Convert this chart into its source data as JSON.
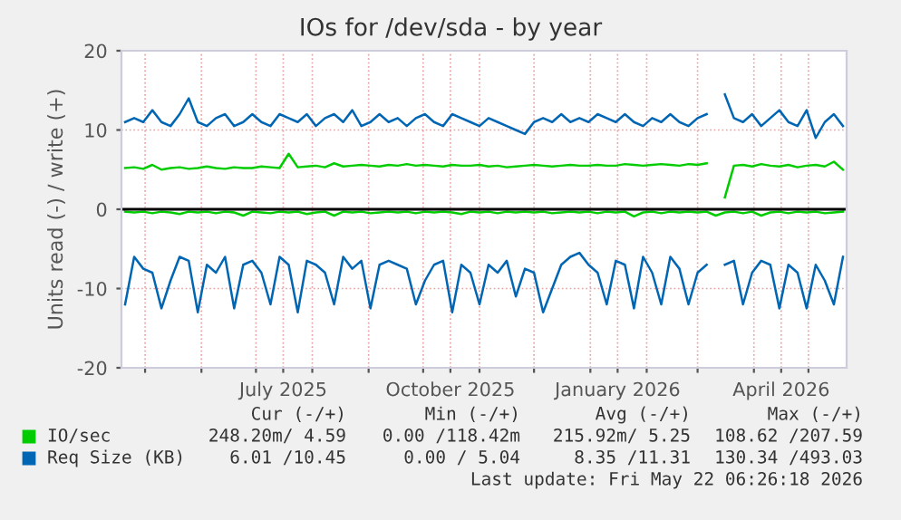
{
  "chart_data": {
    "type": "line",
    "title": "IOs for /dev/sda - by year",
    "ylabel": "Units read (-) / write (+)",
    "x": [
      "2025-04-20",
      "2025-04-25",
      "2025-04-30",
      "2025-05-05",
      "2025-05-10",
      "2025-05-15",
      "2025-05-20",
      "2025-05-25",
      "2025-05-30",
      "2025-06-04",
      "2025-06-09",
      "2025-06-14",
      "2025-06-19",
      "2025-06-24",
      "2025-06-29",
      "2025-07-04",
      "2025-07-09",
      "2025-07-14",
      "2025-07-19",
      "2025-07-24",
      "2025-07-29",
      "2025-08-03",
      "2025-08-08",
      "2025-08-13",
      "2025-08-18",
      "2025-08-23",
      "2025-08-28",
      "2025-09-02",
      "2025-09-07",
      "2025-09-12",
      "2025-09-17",
      "2025-09-22",
      "2025-09-27",
      "2025-10-02",
      "2025-10-07",
      "2025-10-12",
      "2025-10-17",
      "2025-10-22",
      "2025-10-27",
      "2025-11-01",
      "2025-11-06",
      "2025-11-11",
      "2025-11-16",
      "2025-11-21",
      "2025-11-26",
      "2025-12-01",
      "2025-12-06",
      "2025-12-11",
      "2025-12-16",
      "2025-12-21",
      "2025-12-26",
      "2025-12-31",
      "2026-01-05",
      "2026-01-10",
      "2026-01-15",
      "2026-01-20",
      "2026-01-25",
      "2026-01-30",
      "2026-02-04",
      "2026-02-09",
      "2026-02-14",
      "2026-02-19",
      "2026-02-24",
      "2026-03-01",
      "2026-03-06",
      "2026-03-11",
      "2026-03-16",
      "2026-03-21",
      "2026-03-26",
      "2026-03-31",
      "2026-04-05",
      "2026-04-10",
      "2026-04-15",
      "2026-04-20",
      "2026-04-25",
      "2026-04-30",
      "2026-05-05",
      "2026-05-10",
      "2026-05-15",
      "2026-05-20"
    ],
    "series": [
      {
        "name": "IO/sec",
        "color": "#00cc00",
        "values": [
          5.2,
          5.3,
          5.1,
          5.6,
          5.0,
          5.2,
          5.3,
          5.1,
          5.2,
          5.4,
          5.2,
          5.1,
          5.3,
          5.2,
          5.2,
          5.4,
          5.3,
          5.2,
          7.0,
          5.3,
          5.4,
          5.5,
          5.3,
          5.8,
          5.4,
          5.5,
          5.6,
          5.5,
          5.4,
          5.6,
          5.5,
          5.7,
          5.5,
          5.6,
          5.5,
          5.4,
          5.6,
          5.5,
          5.5,
          5.6,
          5.4,
          5.5,
          5.3,
          5.4,
          5.5,
          5.6,
          5.5,
          5.4,
          5.5,
          5.6,
          5.5,
          5.5,
          5.6,
          5.5,
          5.5,
          5.7,
          5.6,
          5.5,
          5.6,
          5.7,
          5.6,
          5.5,
          5.7,
          5.6,
          5.8,
          null,
          1.5,
          5.5,
          5.6,
          5.4,
          5.7,
          5.5,
          5.4,
          5.6,
          5.3,
          5.5,
          5.6,
          5.4,
          6.0,
          5.0
        ]
      },
      {
        "color": "#00cc00",
        "values": [
          -0.3,
          -0.4,
          -0.3,
          -0.5,
          -0.3,
          -0.4,
          -0.6,
          -0.3,
          -0.4,
          -0.3,
          -0.5,
          -0.3,
          -0.4,
          -0.8,
          -0.3,
          -0.4,
          -0.5,
          -0.3,
          -0.4,
          -0.3,
          -0.6,
          -0.4,
          -0.3,
          -0.8,
          -0.3,
          -0.4,
          -0.3,
          -0.5,
          -0.4,
          -0.3,
          -0.4,
          -0.3,
          -0.5,
          -0.3,
          -0.4,
          -0.3,
          -0.4,
          -0.6,
          -0.3,
          -0.4,
          -0.3,
          -0.5,
          -0.3,
          -0.4,
          -0.3,
          -0.4,
          -0.3,
          -0.5,
          -0.4,
          -0.3,
          -0.4,
          -0.3,
          -0.5,
          -0.3,
          -0.4,
          -0.3,
          -0.9,
          -0.4,
          -0.3,
          -0.5,
          -0.3,
          -0.4,
          -0.3,
          -0.4,
          -0.3,
          -0.8,
          -0.4,
          -0.3,
          -0.5,
          -0.3,
          -0.8,
          -0.4,
          -0.3,
          -0.5,
          -0.3,
          -0.4,
          -0.3,
          -0.5,
          -0.4,
          -0.3
        ]
      },
      {
        "name": "Req Size (KB)",
        "color": "#0066b3",
        "values": [
          11,
          11.5,
          11,
          12.5,
          11,
          10.5,
          12,
          14,
          11,
          10.5,
          11.5,
          12,
          10.5,
          11,
          12,
          11,
          10.5,
          12,
          11.5,
          11,
          12,
          10.5,
          11.5,
          12,
          11,
          12.5,
          10.5,
          11,
          12,
          11,
          11.5,
          10.5,
          11.5,
          12,
          11,
          10.5,
          12,
          11.5,
          11,
          10.5,
          11.5,
          11,
          10.5,
          10,
          9.5,
          11,
          11.5,
          11,
          12,
          11,
          11.5,
          11,
          12,
          11.5,
          11,
          12,
          11,
          10.5,
          11.5,
          11,
          12,
          11,
          10.5,
          11.5,
          12,
          null,
          14.5,
          11.5,
          11,
          12,
          10.5,
          11.5,
          12.5,
          11,
          10.5,
          12.5,
          9,
          11,
          12,
          10.5
        ]
      },
      {
        "color": "#0066b3",
        "values": [
          -12,
          -6,
          -7.5,
          -8,
          -12.5,
          -9,
          -6,
          -6.5,
          -13,
          -7,
          -8,
          -6,
          -12.5,
          -7,
          -6.5,
          -8,
          -12,
          -6,
          -7,
          -13,
          -6.5,
          -7,
          -8,
          -12,
          -6,
          -7.5,
          -6.5,
          -12.5,
          -7,
          -6.5,
          -7,
          -7.5,
          -12,
          -9,
          -7,
          -6.5,
          -13,
          -7,
          -8,
          -12,
          -7,
          -8,
          -6.5,
          -11,
          -7.5,
          -8,
          -13,
          -10,
          -7,
          -6,
          -5.5,
          -7,
          -8,
          -12,
          -6.5,
          -7,
          -12.5,
          -6,
          -8,
          -12,
          -6,
          -7.5,
          -12,
          -8,
          -7,
          null,
          -7,
          -6.5,
          -12,
          -8,
          -6.5,
          -7,
          -12.5,
          -7,
          -8,
          -12.5,
          -7,
          -9,
          -12,
          -6
        ]
      }
    ],
    "xlim": [
      "2025-04-18",
      "2026-05-22"
    ],
    "xticks": [
      {
        "value": "2025-05-01",
        "label": null
      },
      {
        "value": "2025-06-01",
        "label": null
      },
      {
        "value": "2025-07-01",
        "label": null
      },
      {
        "value": "2025-07-16",
        "label": "July 2025"
      },
      {
        "value": "2025-08-01",
        "label": null
      },
      {
        "value": "2025-09-01",
        "label": null
      },
      {
        "value": "2025-10-01",
        "label": null
      },
      {
        "value": "2025-10-16",
        "label": "October 2025"
      },
      {
        "value": "2025-11-01",
        "label": null
      },
      {
        "value": "2025-12-01",
        "label": null
      },
      {
        "value": "2026-01-01",
        "label": null
      },
      {
        "value": "2026-01-16",
        "label": "January 2026"
      },
      {
        "value": "2026-02-01",
        "label": null
      },
      {
        "value": "2026-03-01",
        "label": null
      },
      {
        "value": "2026-04-01",
        "label": null
      },
      {
        "value": "2026-04-16",
        "label": "April 2026"
      },
      {
        "value": "2026-05-01",
        "label": null
      }
    ],
    "ylim": [
      -20,
      20
    ],
    "yticks": [
      -20,
      -10,
      0,
      10,
      20
    ],
    "ref_lines": [
      {
        "axis": "y",
        "value": 0,
        "color": "#000000"
      }
    ],
    "grid": true,
    "legend": "bottom",
    "annotations": [
      "Cur (-/+)",
      "Min (-/+)",
      "Avg (-/+)",
      "Max (-/+)",
      "248.20m/ 4.59",
      "0.00 /118.42m",
      "215.92m/ 5.25",
      "108.62 /207.59",
      "6.01 /10.45",
      "0.00 / 5.04",
      "8.35 /11.31",
      "130.34 /493.03",
      "Last update: Fri May 22 06:26:18 2026"
    ]
  }
}
